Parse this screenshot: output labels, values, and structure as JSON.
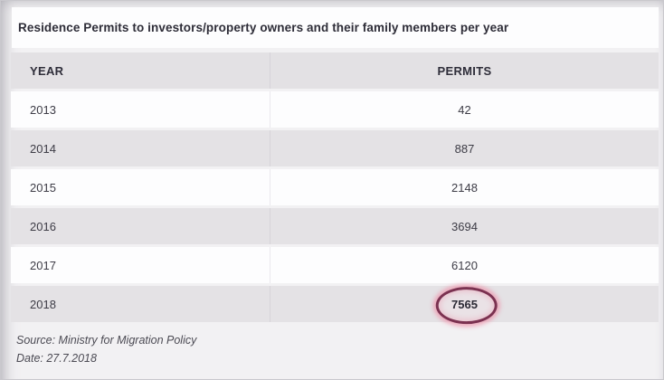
{
  "title": "Residence Permits to investors/property owners and their family members per year",
  "table": {
    "columns": [
      "YEAR",
      "PERMITS"
    ],
    "rows": [
      {
        "year": "2013",
        "permits": "42"
      },
      {
        "year": "2014",
        "permits": "887"
      },
      {
        "year": "2015",
        "permits": "2148"
      },
      {
        "year": "2016",
        "permits": "3694"
      },
      {
        "year": "2017",
        "permits": "6120"
      },
      {
        "year": "2018",
        "permits": "7565"
      }
    ],
    "highlighted_row": "2018"
  },
  "footer": {
    "source": "Source: Ministry for Migration Policy",
    "date": "Date: 27.7.2018"
  },
  "colors": {
    "row_gray": "#e4e2e5",
    "row_white": "#fdfdfe",
    "header_gray": "#e3e1e4",
    "text_dark": "#2f2e3a",
    "highlight_stroke": "#7b3150",
    "highlight_glow": "#ee98af"
  },
  "chart_data": {
    "type": "table",
    "title": "Residence Permits to investors/property owners and their family members per year",
    "columns": [
      "YEAR",
      "PERMITS"
    ],
    "categories": [
      "2013",
      "2014",
      "2015",
      "2016",
      "2017",
      "2018"
    ],
    "series": [
      {
        "name": "PERMITS",
        "values": [
          42,
          887,
          2148,
          3694,
          6120,
          7565
        ]
      }
    ],
    "annotations": [
      "2018 value 7565 is circled with a dark-red hand-drawn ellipse"
    ],
    "source": "Source: Ministry for Migration Policy",
    "date": "Date: 27.7.2018"
  }
}
